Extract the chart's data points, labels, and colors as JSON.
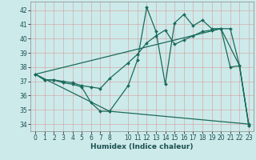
{
  "xlabel": "Humidex (Indice chaleur)",
  "xlim": [
    -0.5,
    23.5
  ],
  "ylim": [
    33.5,
    42.6
  ],
  "yticks": [
    34,
    35,
    36,
    37,
    38,
    39,
    40,
    41,
    42
  ],
  "xticks": [
    0,
    1,
    2,
    3,
    4,
    5,
    6,
    7,
    8,
    10,
    11,
    12,
    13,
    14,
    15,
    16,
    17,
    18,
    19,
    20,
    21,
    22,
    23
  ],
  "bg_color": "#cdeaea",
  "line_color": "#1a6b5a",
  "grid_color": "#c8e0e0",
  "line1_x": [
    0,
    1,
    2,
    3,
    4,
    5,
    6,
    7,
    8,
    10,
    11,
    12,
    13,
    14,
    15,
    16,
    17,
    18,
    19,
    20,
    21,
    22,
    23
  ],
  "line1_y": [
    37.5,
    37.1,
    37.1,
    36.9,
    36.8,
    36.6,
    35.5,
    34.9,
    34.9,
    36.7,
    38.5,
    42.2,
    40.5,
    36.8,
    41.1,
    41.7,
    40.9,
    41.3,
    40.7,
    40.7,
    38.0,
    38.1,
    33.9
  ],
  "line2_x": [
    0,
    1,
    2,
    3,
    4,
    5,
    6,
    7,
    8,
    10,
    11,
    12,
    13,
    14,
    15,
    16,
    17,
    18,
    19,
    20,
    21,
    22,
    23
  ],
  "line2_y": [
    37.5,
    37.1,
    37.1,
    37.0,
    36.9,
    36.7,
    36.6,
    36.5,
    37.2,
    38.3,
    38.9,
    39.7,
    40.2,
    40.6,
    39.6,
    39.9,
    40.2,
    40.5,
    40.6,
    40.7,
    40.7,
    38.1,
    33.9
  ],
  "line3_x": [
    0,
    8,
    23
  ],
  "line3_y": [
    37.5,
    34.9,
    34.0
  ],
  "line4_x": [
    0,
    20,
    22,
    23
  ],
  "line4_y": [
    37.5,
    40.7,
    38.1,
    33.9
  ]
}
